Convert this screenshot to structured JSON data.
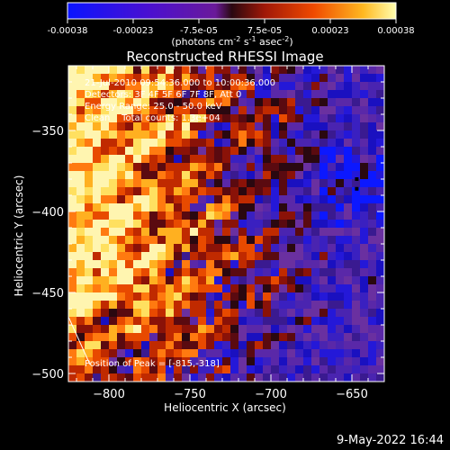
{
  "colorbar": {
    "ticks": [
      "-0.00038",
      "-0.00023",
      "-7.5e-05",
      "7.5e-05",
      "0.00023",
      "0.00038"
    ],
    "label_parts": [
      "(photons cm",
      "-2",
      " s",
      "-1",
      " asec",
      "-2",
      ")"
    ]
  },
  "chart_data": {
    "type": "heatmap",
    "title": "Reconstructed RHESSI Image",
    "xlabel": "Heliocentric X (arcsec)",
    "ylabel": "Heliocentric Y (arcsec)",
    "xlim": [
      -825,
      -630
    ],
    "ylim": [
      -505,
      -310
    ],
    "x_ticks": [
      -800,
      -750,
      -700,
      -650
    ],
    "y_ticks": [
      -350,
      -400,
      -450,
      -500
    ],
    "x_tick_labels": [
      "−800",
      "−750",
      "−700",
      "−650"
    ],
    "y_tick_labels": [
      "−350",
      "−400",
      "−450",
      "−500"
    ],
    "colorscale_range": [
      -0.00038,
      0.00038
    ],
    "peak": [
      -815,
      -318
    ],
    "dark_spots": [
      [
        -647,
        -380
      ],
      [
        -647,
        -386
      ]
    ],
    "annotations": [
      "21-Jul-2010 09:54:36.000 to 10:00:36.000",
      "Detectors: 3F 4F 5F 6F 7F 8F, Att 0",
      "Energy Range: 25.0 - 50.0 keV",
      "Clean    Total counts: 1.3e+04",
      "Position of Peak = [-815,-318]"
    ]
  },
  "footer": {
    "date": "9-May-2022 16:44"
  }
}
